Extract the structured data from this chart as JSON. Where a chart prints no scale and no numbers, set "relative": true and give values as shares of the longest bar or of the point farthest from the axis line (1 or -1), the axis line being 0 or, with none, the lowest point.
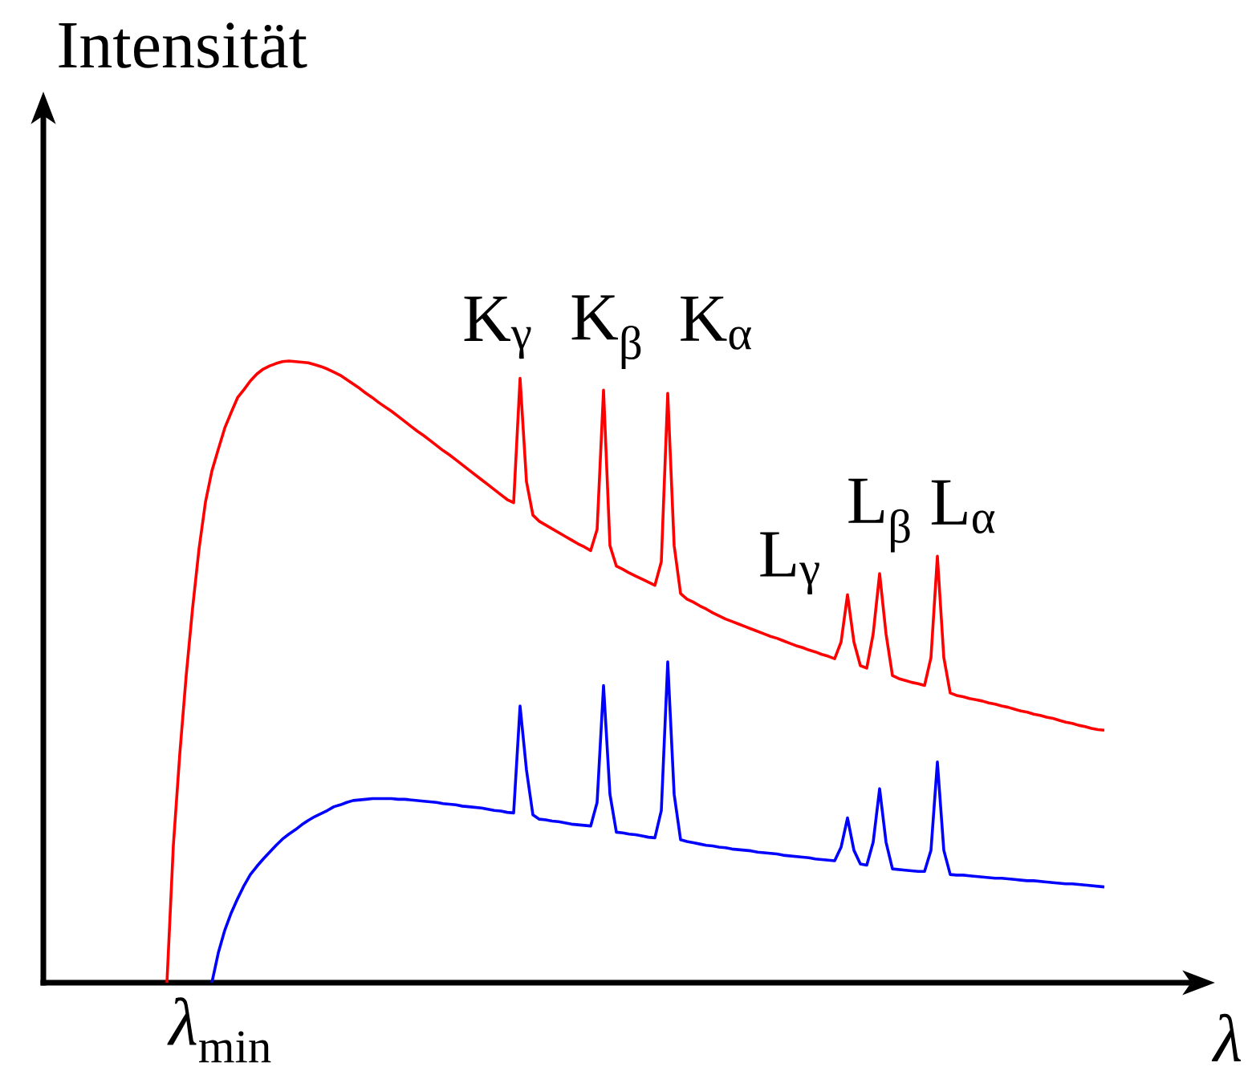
{
  "chart_data": {
    "type": "line",
    "xlabel": "λ",
    "ylabel": "Intensität",
    "relative": true,
    "categories": [
      null,
      null,
      null,
      null,
      null,
      null,
      null,
      null,
      null,
      null,
      null,
      null,
      null,
      null,
      null,
      null,
      null,
      null,
      null,
      null,
      null,
      null,
      null,
      null,
      null,
      null,
      null,
      null,
      null,
      null,
      null,
      null,
      null,
      null,
      null,
      null,
      null,
      null,
      null,
      null,
      null,
      null,
      null,
      null,
      null,
      null,
      null,
      null,
      null,
      null,
      null,
      null,
      null,
      null,
      null,
      null,
      null,
      null,
      null,
      null,
      null,
      null,
      null,
      null,
      null,
      null,
      null,
      null,
      null,
      null,
      null,
      null,
      null,
      null,
      null,
      null,
      null,
      null,
      null,
      null,
      null,
      null,
      null,
      null,
      null,
      null,
      null,
      null,
      null,
      null,
      null,
      null,
      null,
      null,
      null,
      null,
      null,
      null,
      null,
      null,
      null,
      null,
      null,
      null,
      null,
      null,
      null,
      null,
      null,
      null,
      null,
      null,
      null,
      null,
      null,
      null,
      null,
      null,
      null,
      null,
      null,
      null,
      null,
      null,
      null,
      null,
      null,
      null,
      null,
      null,
      null,
      null,
      null,
      null,
      null,
      null,
      null,
      null,
      null,
      null,
      null,
      null,
      null,
      null,
      null,
      null,
      null
    ],
    "series": [
      {
        "color": "#ff0000",
        "values": [
          0,
          0.221,
          0.368,
          0.494,
          0.603,
          0.698,
          0.773,
          0.823,
          0.858,
          0.892,
          0.917,
          0.941,
          0.954,
          0.968,
          0.979,
          0.987,
          0.992,
          0.996,
          0.999,
          1,
          0.999,
          0.998,
          0.997,
          0.994,
          0.991,
          0.987,
          0.982,
          0.977,
          0.97,
          0.963,
          0.956,
          0.948,
          0.941,
          0.933,
          0.926,
          0.919,
          0.911,
          0.903,
          0.895,
          0.887,
          0.88,
          0.872,
          0.864,
          0.856,
          0.849,
          0.841,
          0.833,
          0.825,
          0.817,
          0.809,
          0.801,
          0.793,
          0.785,
          0.777,
          0.772,
          0.972,
          0.806,
          0.752,
          0.742,
          0.736,
          0.73,
          0.724,
          0.718,
          0.712,
          0.706,
          0.701,
          0.695,
          0.729,
          0.953,
          0.703,
          0.67,
          0.665,
          0.659,
          0.654,
          0.649,
          0.644,
          0.639,
          0.677,
          0.948,
          0.703,
          0.626,
          0.617,
          0.612,
          0.606,
          0.601,
          0.595,
          0.59,
          0.585,
          0.581,
          0.577,
          0.573,
          0.569,
          0.565,
          0.561,
          0.557,
          0.554,
          0.55,
          0.546,
          0.542,
          0.539,
          0.535,
          0.532,
          0.528,
          0.525,
          0.521,
          0.548,
          0.624,
          0.548,
          0.51,
          0.506,
          0.561,
          0.658,
          0.561,
          0.494,
          0.489,
          0.486,
          0.483,
          0.481,
          0.478,
          0.523,
          0.686,
          0.523,
          0.466,
          0.462,
          0.46,
          0.457,
          0.455,
          0.453,
          0.45,
          0.448,
          0.445,
          0.443,
          0.44,
          0.437,
          0.435,
          0.432,
          0.43,
          0.427,
          0.425,
          0.422,
          0.419,
          0.417,
          0.414,
          0.412,
          0.409,
          0.407,
          0.406
        ]
      },
      {
        "color": "#0000ff",
        "values": [
          null,
          null,
          null,
          null,
          null,
          null,
          null,
          0,
          0.048,
          0.084,
          0.112,
          0.135,
          0.156,
          0.174,
          0.187,
          0.199,
          0.21,
          0.221,
          0.231,
          0.239,
          0.246,
          0.254,
          0.261,
          0.267,
          0.272,
          0.277,
          0.283,
          0.286,
          0.29,
          0.293,
          0.294,
          0.295,
          0.296,
          0.296,
          0.296,
          0.296,
          0.295,
          0.295,
          0.294,
          0.293,
          0.292,
          0.291,
          0.29,
          0.288,
          0.287,
          0.286,
          0.284,
          0.283,
          0.282,
          0.281,
          0.279,
          0.277,
          0.276,
          0.274,
          0.273,
          0.445,
          0.342,
          0.27,
          0.263,
          0.262,
          0.26,
          0.259,
          0.257,
          0.255,
          0.254,
          0.253,
          0.252,
          0.29,
          0.478,
          0.303,
          0.242,
          0.241,
          0.239,
          0.238,
          0.236,
          0.234,
          0.233,
          0.277,
          0.516,
          0.303,
          0.23,
          0.227,
          0.225,
          0.223,
          0.221,
          0.22,
          0.218,
          0.217,
          0.215,
          0.214,
          0.213,
          0.212,
          0.21,
          0.209,
          0.208,
          0.207,
          0.205,
          0.204,
          0.203,
          0.202,
          0.201,
          0.199,
          0.198,
          0.197,
          0.196,
          0.218,
          0.265,
          0.213,
          0.191,
          0.189,
          0.226,
          0.312,
          0.226,
          0.183,
          0.182,
          0.181,
          0.18,
          0.179,
          0.179,
          0.213,
          0.355,
          0.213,
          0.174,
          0.173,
          0.173,
          0.172,
          0.171,
          0.17,
          0.169,
          0.168,
          0.168,
          0.167,
          0.166,
          0.165,
          0.164,
          0.164,
          0.163,
          0.162,
          0.161,
          0.16,
          0.159,
          0.159,
          0.158,
          0.157,
          0.156,
          0.155,
          0.154
        ]
      }
    ],
    "annotations": [
      {
        "text": "*λ*$_{min}$",
        "y": 0
      },
      "K$_{γ}$",
      "K$_{β}$",
      "K$_{α}$",
      "L$_{γ}$",
      "L$_{β}$",
      "L$_{α}$"
    ]
  }
}
